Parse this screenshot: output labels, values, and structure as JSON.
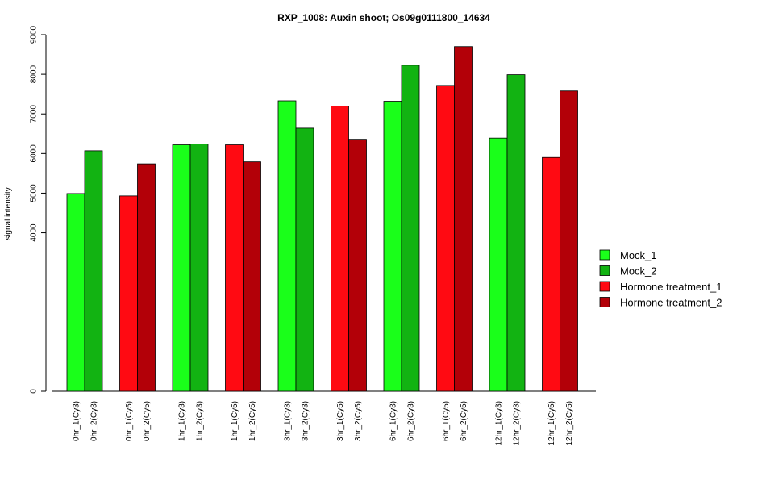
{
  "chart_data": {
    "type": "bar",
    "title": "RXP_1008: Auxin shoot; Os09g0111800_14634",
    "ylabel": "signal intensity",
    "xlabel": "",
    "y_ticks": [
      "0",
      "4000",
      "5000",
      "6000",
      "7000",
      "8000",
      "9000"
    ],
    "y_tick_values": [
      0,
      4000,
      5000,
      6000,
      7000,
      8000,
      9000
    ],
    "legend_position": "right",
    "legend": [
      {
        "name": "Mock_1",
        "color": "#1AFF1A"
      },
      {
        "name": "Mock_2",
        "color": "#12B312"
      },
      {
        "name": "Hormone treatment_1",
        "color": "#FF0A12"
      },
      {
        "name": "Hormone treatment_2",
        "color": "#B30008"
      }
    ],
    "bars": [
      {
        "label": "0hr_1(Cy3)",
        "value": 4990,
        "series": 0
      },
      {
        "label": "0hr_2(Cy3)",
        "value": 6070,
        "series": 1
      },
      {
        "label": "0hr_1(Cy5)",
        "value": 4930,
        "series": 2
      },
      {
        "label": "0hr_2(Cy5)",
        "value": 5740,
        "series": 3
      },
      {
        "label": "1hr_1(Cy3)",
        "value": 6220,
        "series": 0
      },
      {
        "label": "1hr_2(Cy3)",
        "value": 6240,
        "series": 1
      },
      {
        "label": "1hr_1(Cy5)",
        "value": 6220,
        "series": 2
      },
      {
        "label": "1hr_2(Cy5)",
        "value": 5790,
        "series": 3
      },
      {
        "label": "3hr_1(Cy3)",
        "value": 7330,
        "series": 0
      },
      {
        "label": "3hr_2(Cy3)",
        "value": 6640,
        "series": 1
      },
      {
        "label": "3hr_1(Cy5)",
        "value": 7200,
        "series": 2
      },
      {
        "label": "3hr_2(Cy5)",
        "value": 6360,
        "series": 3
      },
      {
        "label": "6hr_1(Cy3)",
        "value": 7320,
        "series": 0
      },
      {
        "label": "6hr_2(Cy3)",
        "value": 8230,
        "series": 1
      },
      {
        "label": "6hr_1(Cy5)",
        "value": 7720,
        "series": 2
      },
      {
        "label": "6hr_2(Cy5)",
        "value": 8700,
        "series": 3
      },
      {
        "label": "12hr_1(Cy3)",
        "value": 6390,
        "series": 0
      },
      {
        "label": "12hr_2(Cy3)",
        "value": 7990,
        "series": 1
      },
      {
        "label": "12hr_1(Cy5)",
        "value": 5900,
        "series": 2
      },
      {
        "label": "12hr_2(Cy5)",
        "value": 7580,
        "series": 3
      }
    ],
    "ylim": [
      0,
      9000
    ]
  }
}
